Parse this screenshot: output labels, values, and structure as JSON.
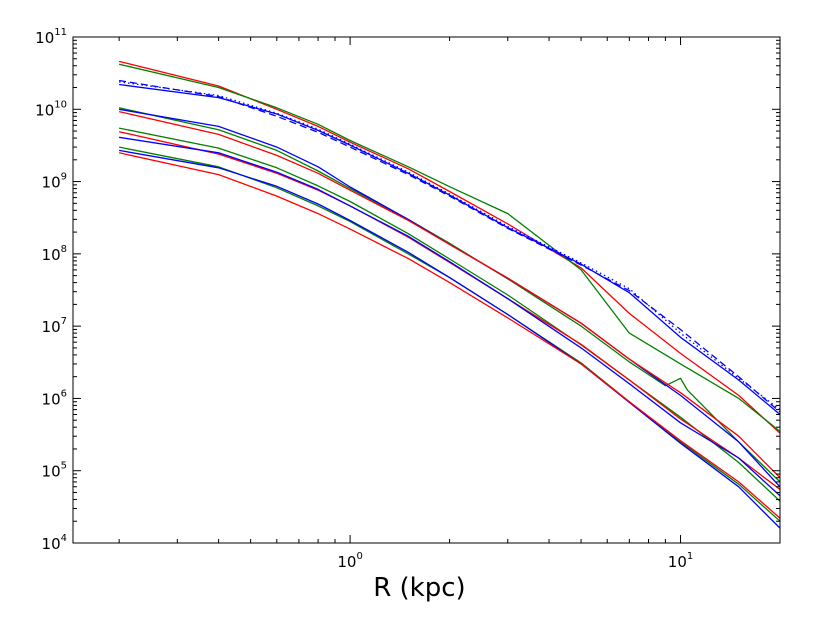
{
  "chart_data": {
    "type": "line",
    "title": "",
    "xlabel": "R (kpc)",
    "ylabel": "",
    "xscale": "log",
    "yscale": "log",
    "xlim": [
      0.145,
      20
    ],
    "ylim": [
      10000,
      100000000000
    ],
    "grid": false,
    "legend": "none",
    "x_ticks": [
      {
        "base": "10",
        "exp": "0",
        "value": 1
      },
      {
        "base": "10",
        "exp": "1",
        "value": 10
      }
    ],
    "y_ticks": [
      {
        "base": "10",
        "exp": "4",
        "value": 10000
      },
      {
        "base": "10",
        "exp": "5",
        "value": 100000
      },
      {
        "base": "10",
        "exp": "6",
        "value": 1000000
      },
      {
        "base": "10",
        "exp": "7",
        "value": 10000000
      },
      {
        "base": "10",
        "exp": "8",
        "value": 100000000
      },
      {
        "base": "10",
        "exp": "9",
        "value": 1000000000
      },
      {
        "base": "10",
        "exp": "10",
        "value": 10000000000
      },
      {
        "base": "10",
        "exp": "11",
        "value": 100000000000
      }
    ],
    "series": [
      {
        "name": "top-red",
        "color": "#ff0000",
        "style": "solid",
        "x": [
          0.2,
          0.4,
          0.6,
          0.8,
          1.0,
          1.5,
          2.0,
          3.0,
          5.0,
          7.0,
          10.0,
          15.0,
          20.0
        ],
        "y": [
          46000000000.0,
          21000000000.0,
          10000000000.0,
          5800000000.0,
          3500000000.0,
          1500000000.0,
          730000000.0,
          260000000.0,
          64000000.0,
          15000000.0,
          4200000.0,
          1100000.0,
          330000.0
        ]
      },
      {
        "name": "top-green",
        "color": "#008000",
        "style": "solid",
        "x": [
          0.2,
          0.4,
          0.6,
          0.8,
          1.0,
          1.5,
          2.0,
          3.0,
          5.0,
          7.0,
          10.0,
          15.0,
          20.0
        ],
        "y": [
          42000000000.0,
          20000000000.0,
          10500000000.0,
          6200000000.0,
          3700000000.0,
          1600000000.0,
          850000000.0,
          360000000.0,
          60000000.0,
          8000000.0,
          3000000.0,
          1000000.0,
          350000.0
        ]
      },
      {
        "name": "top-blue-solid",
        "color": "#0000ff",
        "style": "solid",
        "x": [
          0.2,
          0.4,
          0.6,
          0.8,
          1.0,
          1.5,
          2.0,
          3.0,
          5.0,
          7.0,
          10.0,
          15.0,
          20.0
        ],
        "y": [
          22000000000.0,
          14500000000.0,
          8600000000.0,
          5100000000.0,
          3200000000.0,
          1300000000.0,
          650000000.0,
          230000000.0,
          72000000.0,
          29000000.0,
          7000000.0,
          1800000.0,
          600000.0
        ]
      },
      {
        "name": "top-blue-dashed",
        "color": "#0000ff",
        "style": "dashed",
        "x": [
          0.2,
          0.4,
          0.6,
          0.8,
          1.0,
          1.5,
          2.0,
          3.0,
          5.0,
          7.0,
          10.0,
          15.0,
          20.0
        ],
        "y": [
          25000000000.0,
          15000000000.0,
          8000000000.0,
          4800000000.0,
          3000000000.0,
          1250000000.0,
          630000000.0,
          225000000.0,
          70000000.0,
          31000000.0,
          9000000.0,
          2000000.0,
          650000.0
        ]
      },
      {
        "name": "top-blue-dotted",
        "color": "#0000ff",
        "style": "dotted",
        "x": [
          0.2,
          0.4,
          0.6,
          0.8,
          1.0,
          1.5,
          2.0,
          3.0,
          5.0,
          7.0,
          10.0,
          15.0,
          20.0
        ],
        "y": [
          24000000000.0,
          15500000000.0,
          8800000000.0,
          5300000000.0,
          3300000000.0,
          1350000000.0,
          670000000.0,
          240000000.0,
          75000000.0,
          33000000.0,
          8000000.0,
          1900000.0,
          700000.0
        ]
      },
      {
        "name": "mid1-green",
        "color": "#008000",
        "style": "solid",
        "x": [
          0.2,
          0.4,
          0.6,
          0.8,
          1.0,
          1.5,
          2.0,
          3.0,
          5.0,
          7.0,
          9.0,
          10.0,
          10.5,
          12.0,
          15.0,
          20.0
        ],
        "y": [
          10500000000.0,
          5200000000.0,
          2700000000.0,
          1400000000.0,
          800000000.0,
          300000000.0,
          140000000.0,
          45000000.0,
          10000000.0,
          3200000.0,
          1500000.0,
          1900000.0,
          1300000.0,
          700000.0,
          250000.0,
          70000.0
        ]
      },
      {
        "name": "mid1-blue",
        "color": "#0000ff",
        "style": "solid",
        "x": [
          0.2,
          0.4,
          0.6,
          0.8,
          1.0,
          1.5,
          2.0,
          3.0,
          5.0,
          7.0,
          10.0,
          15.0,
          20.0
        ],
        "y": [
          10000000000.0,
          5800000000.0,
          3000000000.0,
          1600000000.0,
          840000000.0,
          300000000.0,
          135000000.0,
          46000000.0,
          11000000.0,
          3500000.0,
          1100000.0,
          250000.0,
          60000.0
        ]
      },
      {
        "name": "mid1-red",
        "color": "#ff0000",
        "style": "solid",
        "x": [
          0.2,
          0.4,
          0.6,
          0.8,
          1.0,
          1.5,
          2.0,
          3.0,
          5.0,
          7.0,
          10.0,
          15.0,
          20.0
        ],
        "y": [
          9300000000.0,
          4500000000.0,
          2300000000.0,
          1300000000.0,
          760000000.0,
          290000000.0,
          135000000.0,
          46000000.0,
          11000000.0,
          3500000.0,
          1200000.0,
          300000.0,
          80000.0
        ]
      },
      {
        "name": "mid2-green",
        "color": "#008000",
        "style": "solid",
        "x": [
          0.2,
          0.4,
          0.6,
          0.8,
          1.0,
          1.5,
          2.0,
          3.0,
          5.0,
          7.0,
          10.0,
          15.0,
          20.0
        ],
        "y": [
          5500000000.0,
          2900000000.0,
          1550000000.0,
          870000000.0,
          530000000.0,
          190000000.0,
          85000000.0,
          27000000.0,
          5500000.0,
          1800000.0,
          550000.0,
          130000.0,
          38000.0
        ]
      },
      {
        "name": "mid2-red",
        "color": "#ff0000",
        "style": "solid",
        "x": [
          0.2,
          0.4,
          0.6,
          0.8,
          1.0,
          1.5,
          2.0,
          3.0,
          5.0,
          7.0,
          10.0,
          15.0,
          20.0
        ],
        "y": [
          4900000000.0,
          2400000000.0,
          1300000000.0,
          760000000.0,
          460000000.0,
          170000000.0,
          76000000.0,
          24000000.0,
          5600000.0,
          1800000.0,
          520000.0,
          150000.0,
          55000.0
        ]
      },
      {
        "name": "mid2-blue",
        "color": "#0000ff",
        "style": "solid",
        "x": [
          0.2,
          0.4,
          0.6,
          0.8,
          1.0,
          1.5,
          2.0,
          3.0,
          5.0,
          7.0,
          10.0,
          15.0,
          20.0
        ],
        "y": [
          4100000000.0,
          2500000000.0,
          1350000000.0,
          780000000.0,
          460000000.0,
          175000000.0,
          78000000.0,
          24000000.0,
          5000000.0,
          1600000.0,
          460000.0,
          150000.0,
          45000.0
        ]
      },
      {
        "name": "low-green",
        "color": "#008000",
        "style": "solid",
        "x": [
          0.2,
          0.4,
          0.6,
          0.8,
          1.0,
          1.5,
          2.0,
          3.0,
          5.0,
          7.0,
          10.0,
          15.0,
          20.0
        ],
        "y": [
          3000000000.0,
          1600000000.0,
          820000000.0,
          460000000.0,
          280000000.0,
          100000000.0,
          47000000.0,
          14500000.0,
          3100000.0,
          900000.0,
          250000.0,
          65000.0,
          20000.0
        ]
      },
      {
        "name": "low-blue",
        "color": "#0000ff",
        "style": "solid",
        "x": [
          0.2,
          0.4,
          0.6,
          0.8,
          1.0,
          1.5,
          2.0,
          3.0,
          5.0,
          7.0,
          10.0,
          15.0,
          20.0
        ],
        "y": [
          2700000000.0,
          1550000000.0,
          860000000.0,
          490000000.0,
          290000000.0,
          105000000.0,
          47000000.0,
          14500000.0,
          3000000.0,
          880000.0,
          240000.0,
          60000.0,
          16000.0
        ]
      },
      {
        "name": "low-red",
        "color": "#ff0000",
        "style": "solid",
        "x": [
          0.2,
          0.4,
          0.6,
          0.8,
          1.0,
          1.5,
          2.0,
          3.0,
          5.0,
          7.0,
          10.0,
          15.0,
          20.0
        ],
        "y": [
          2500000000.0,
          1250000000.0,
          630000000.0,
          360000000.0,
          220000000.0,
          86000000.0,
          40000000.0,
          13000000.0,
          3000000.0,
          900000.0,
          260000.0,
          70000.0,
          22000.0
        ]
      }
    ]
  }
}
